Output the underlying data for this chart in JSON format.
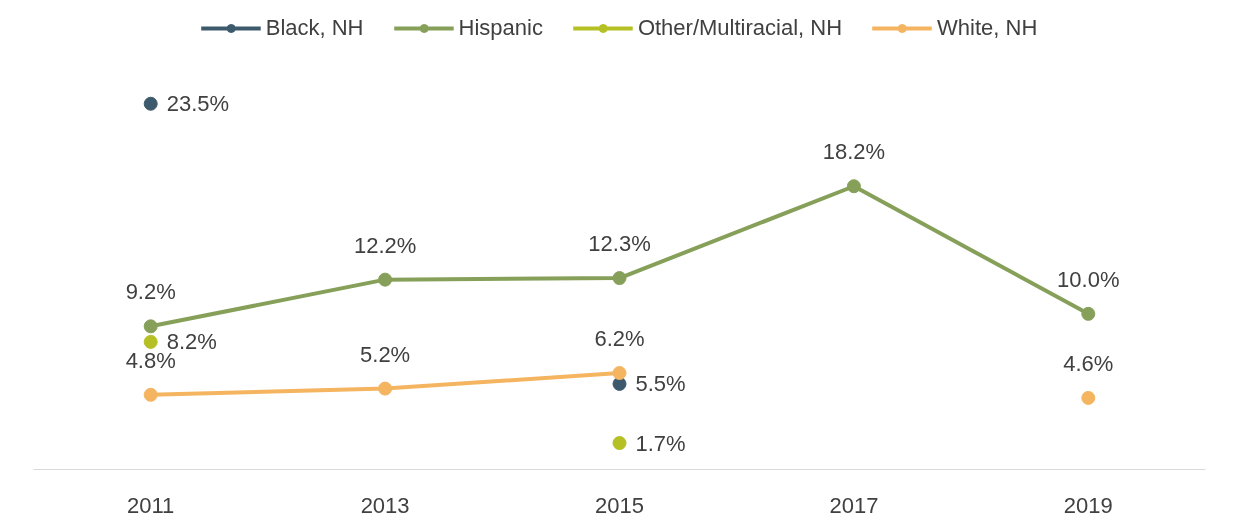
{
  "chart_data": {
    "type": "line",
    "categories": [
      "2011",
      "2013",
      "2015",
      "2017",
      "2019"
    ],
    "series": [
      {
        "name": "Black, NH",
        "type": "scatter",
        "color": "#3d5a6c",
        "values": [
          23.5,
          null,
          5.5,
          null,
          null
        ],
        "value_labels": [
          "23.5%",
          null,
          "5.5%",
          null,
          null
        ]
      },
      {
        "name": "Hispanic",
        "color": "#86a05a",
        "values": [
          9.2,
          12.2,
          12.3,
          18.2,
          10.0
        ],
        "value_labels": [
          "9.2%",
          "12.2%",
          "12.3%",
          "18.2%",
          "10.0%"
        ]
      },
      {
        "name": "Other/Multiracial, NH",
        "type": "scatter",
        "color": "#b5c024",
        "values": [
          8.2,
          null,
          1.7,
          null,
          null
        ],
        "value_labels": [
          "8.2%",
          null,
          "1.7%",
          null,
          null
        ]
      },
      {
        "name": "White, NH",
        "color": "#f4b460",
        "values": [
          4.8,
          5.2,
          6.2,
          null,
          4.6
        ],
        "value_labels": [
          "4.8%",
          "5.2%",
          "6.2%",
          null,
          "4.6%"
        ]
      }
    ],
    "legend": "top",
    "marker": "circle",
    "grid": false,
    "tick_labels": "x"
  }
}
